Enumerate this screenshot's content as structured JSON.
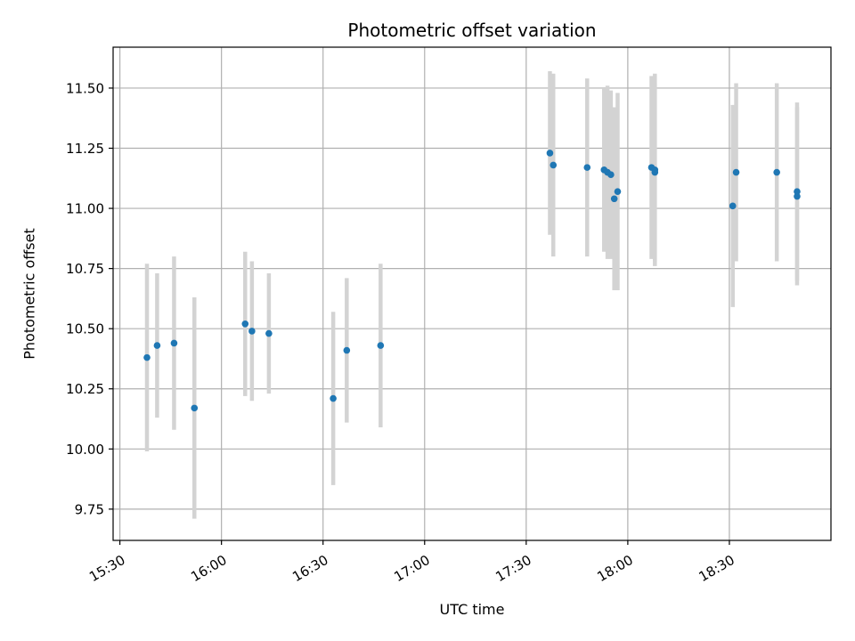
{
  "chart_data": {
    "type": "scatter",
    "title": "Photometric offset variation",
    "xlabel": "UTC time",
    "ylabel": "Photometric offset",
    "xlim": [
      "15:28",
      "19:00"
    ],
    "ylim": [
      9.62,
      11.67
    ],
    "xticks": [
      "15:30",
      "16:00",
      "16:30",
      "17:00",
      "17:30",
      "18:00",
      "18:30"
    ],
    "yticks": [
      9.75,
      10.0,
      10.25,
      10.5,
      10.75,
      11.0,
      11.25,
      11.5
    ],
    "grid": true,
    "legend": false,
    "x_tick_rotation": 30,
    "marker_style": "filled-circle",
    "error_bars": "vertical",
    "points": [
      {
        "time": "15:38",
        "value": 10.38,
        "error": 0.39
      },
      {
        "time": "15:41",
        "value": 10.43,
        "error": 0.3
      },
      {
        "time": "15:46",
        "value": 10.44,
        "error": 0.36
      },
      {
        "time": "15:52",
        "value": 10.17,
        "error": 0.46
      },
      {
        "time": "16:07",
        "value": 10.52,
        "error": 0.3
      },
      {
        "time": "16:09",
        "value": 10.49,
        "error": 0.29
      },
      {
        "time": "16:14",
        "value": 10.48,
        "error": 0.25
      },
      {
        "time": "16:33",
        "value": 10.21,
        "error": 0.36
      },
      {
        "time": "16:37",
        "value": 10.41,
        "error": 0.3
      },
      {
        "time": "16:47",
        "value": 10.43,
        "error": 0.34
      },
      {
        "time": "17:37",
        "value": 11.23,
        "error": 0.34
      },
      {
        "time": "17:38",
        "value": 11.18,
        "error": 0.38
      },
      {
        "time": "17:48",
        "value": 11.17,
        "error": 0.37
      },
      {
        "time": "17:53",
        "value": 11.16,
        "error": 0.34
      },
      {
        "time": "17:54",
        "value": 11.15,
        "error": 0.36
      },
      {
        "time": "17:55",
        "value": 11.14,
        "error": 0.35
      },
      {
        "time": "17:56",
        "value": 11.04,
        "error": 0.38
      },
      {
        "time": "17:57",
        "value": 11.07,
        "error": 0.41
      },
      {
        "time": "18:07",
        "value": 11.17,
        "error": 0.38
      },
      {
        "time": "18:08",
        "value": 11.16,
        "error": 0.4
      },
      {
        "time": "18:08",
        "value": 11.15,
        "error": 0.37
      },
      {
        "time": "18:31",
        "value": 11.01,
        "error": 0.42
      },
      {
        "time": "18:32",
        "value": 11.15,
        "error": 0.37
      },
      {
        "time": "18:44",
        "value": 11.15,
        "error": 0.37
      },
      {
        "time": "18:50",
        "value": 11.07,
        "error": 0.37
      },
      {
        "time": "18:50",
        "value": 11.05,
        "error": 0.37
      }
    ],
    "colors": {
      "marker": "#1f77b4",
      "error_bar": "#d3d3d3",
      "grid": "#b0b0b0",
      "spine": "#000000",
      "background": "#ffffff"
    }
  }
}
